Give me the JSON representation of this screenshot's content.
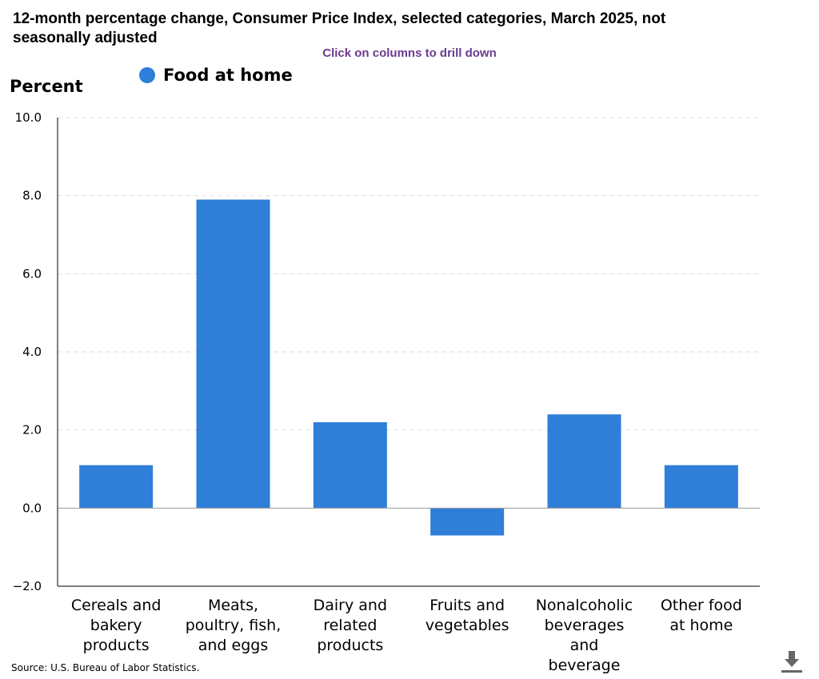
{
  "header": {
    "title": "12-month percentage change, Consumer Price Index, selected categories, March 2025, not seasonally adjusted",
    "subtitle": "Click on columns to drill down"
  },
  "footer": {
    "source": "Source: U.S. Bureau of Labor Statistics."
  },
  "icons": {
    "download": "download-icon"
  },
  "colors": {
    "bar": "#2f7ed8",
    "gridline": "#e0e0e0",
    "axis": "#555555",
    "subtitle": "#6b3a8f"
  },
  "chart_data": {
    "type": "bar",
    "title": "12-month percentage change, Consumer Price Index, selected categories, March 2025, not seasonally adjusted",
    "subtitle": "Click on columns to drill down",
    "ylabel": "Percent",
    "xlabel": "",
    "ylim": [
      -2,
      10
    ],
    "yticks": [
      "−2.0",
      "0.0",
      "2.0",
      "4.0",
      "6.0",
      "8.0",
      "10.0"
    ],
    "grid": true,
    "legend": "top-left",
    "categories": [
      [
        "Cereals and",
        "bakery",
        "products"
      ],
      [
        "Meats,",
        "poultry, fish,",
        "and eggs"
      ],
      [
        "Dairy and",
        "related",
        "products"
      ],
      [
        "Fruits and",
        "vegetables"
      ],
      [
        "Nonalcoholic",
        "beverages",
        "and",
        "beverage"
      ],
      [
        "Other food",
        "at home"
      ]
    ],
    "series": [
      {
        "name": "Food at home",
        "values": [
          1.1,
          7.9,
          2.2,
          -0.7,
          2.4,
          1.1
        ]
      }
    ]
  }
}
